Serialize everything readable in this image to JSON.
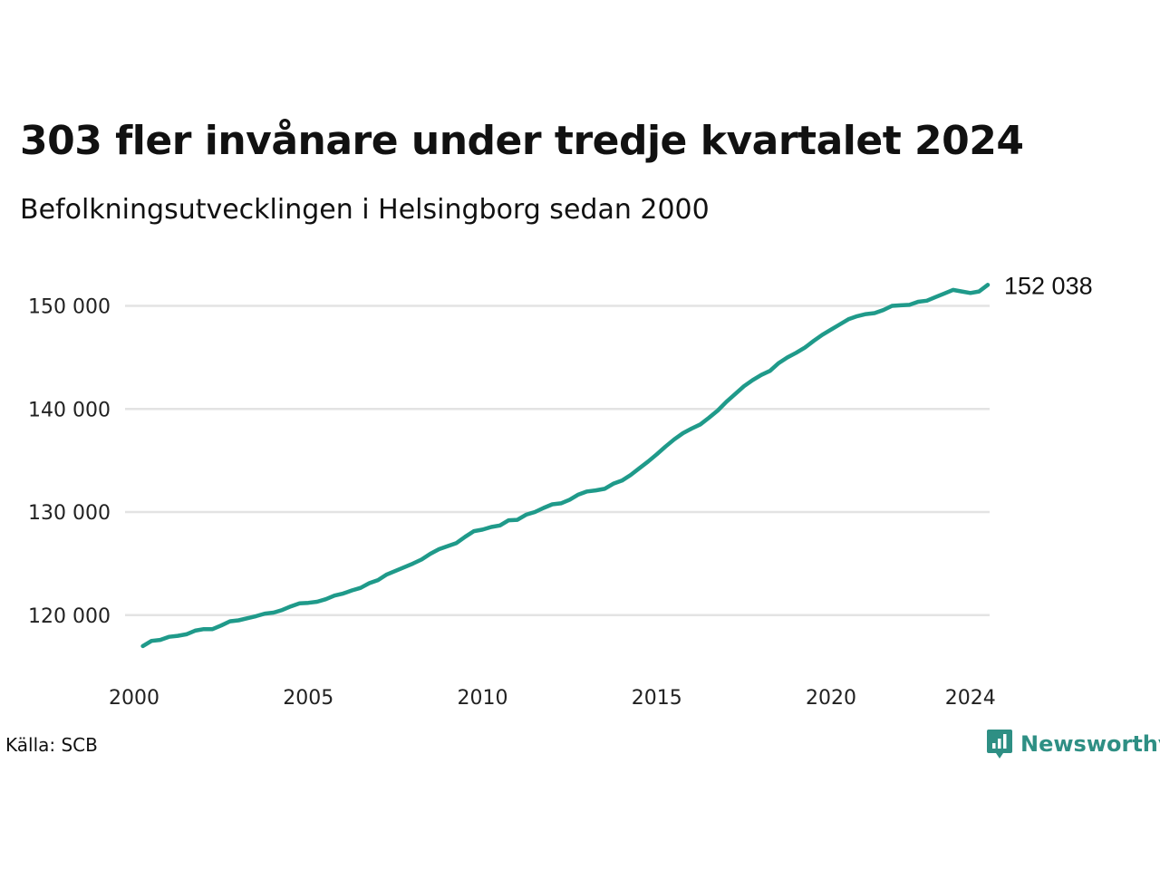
{
  "header": {
    "title": "303 fler invånare under tredje kvartalet 2024",
    "subtitle": "Befolkningsutvecklingen i Helsingborg sedan 2000"
  },
  "footer": {
    "source": "Källa: SCB",
    "brand": "Newsworthy",
    "brand_icon": "newsworthy-logo-icon"
  },
  "colors": {
    "line": "#1f9a8a",
    "grid": "#e3e3e3",
    "brand": "#2e8f84"
  },
  "chart_data": {
    "type": "line",
    "title": "303 fler invånare under tredje kvartalet 2024",
    "subtitle": "Befolkningsutvecklingen i Helsingborg sedan 2000",
    "xlabel": "",
    "ylabel": "",
    "xlim": [
      2000,
      2024.5
    ],
    "ylim": [
      115500,
      154000
    ],
    "x_ticks": [
      2000,
      2005,
      2010,
      2015,
      2020,
      2024
    ],
    "y_ticks": [
      120000,
      130000,
      140000,
      150000
    ],
    "y_tick_labels": [
      "120 000",
      "130 000",
      "140 000",
      "150 000"
    ],
    "grid": "horizontal",
    "legend": "none",
    "end_label": "152 038",
    "series": [
      {
        "x": [
          2000.25,
          2000.5,
          2000.75,
          2001,
          2001.25,
          2001.5,
          2001.75,
          2002,
          2002.25,
          2002.5,
          2002.75,
          2003,
          2003.25,
          2003.5,
          2003.75,
          2004,
          2004.25,
          2004.5,
          2004.75,
          2005,
          2005.25,
          2005.5,
          2005.75,
          2006,
          2006.25,
          2006.5,
          2006.75,
          2007,
          2007.25,
          2007.5,
          2007.75,
          2008,
          2008.25,
          2008.5,
          2008.75,
          2009,
          2009.25,
          2009.5,
          2009.75,
          2010,
          2010.25,
          2010.5,
          2010.75,
          2011,
          2011.25,
          2011.5,
          2011.75,
          2012,
          2012.25,
          2012.5,
          2012.75,
          2013,
          2013.25,
          2013.5,
          2013.75,
          2014,
          2014.25,
          2014.5,
          2014.75,
          2015,
          2015.25,
          2015.5,
          2015.75,
          2016,
          2016.25,
          2016.5,
          2016.75,
          2017,
          2017.25,
          2017.5,
          2017.75,
          2018,
          2018.25,
          2018.5,
          2018.75,
          2019,
          2019.25,
          2019.5,
          2019.75,
          2020,
          2020.25,
          2020.5,
          2020.75,
          2021,
          2021.25,
          2021.5,
          2021.75,
          2022,
          2022.25,
          2022.5,
          2022.75,
          2023,
          2023.25,
          2023.5,
          2023.75,
          2024,
          2024.25,
          2024.5
        ],
        "y": [
          117000,
          117500,
          117600,
          117900,
          118000,
          118150,
          118500,
          118650,
          118650,
          119000,
          119400,
          119500,
          119700,
          119900,
          120150,
          120250,
          120500,
          120850,
          121150,
          121200,
          121300,
          121550,
          121900,
          122100,
          122400,
          122650,
          123100,
          123400,
          123950,
          124300,
          124650,
          125000,
          125400,
          125950,
          126400,
          126700,
          127000,
          127600,
          128150,
          128300,
          128550,
          128700,
          129200,
          129250,
          129750,
          130000,
          130400,
          130750,
          130850,
          131200,
          131700,
          132000,
          132100,
          132250,
          132750,
          133050,
          133600,
          134250,
          134900,
          135600,
          136350,
          137050,
          137650,
          138100,
          138500,
          139150,
          139850,
          140700,
          141450,
          142200,
          142800,
          143300,
          143700,
          144450,
          145000,
          145450,
          145950,
          146600,
          147200,
          147700,
          148200,
          148700,
          149000,
          149200,
          149300,
          149600,
          150000,
          150050,
          150100,
          150400,
          150500,
          150850,
          151200,
          151550,
          151400,
          151250,
          151400,
          152038
        ]
      }
    ]
  }
}
